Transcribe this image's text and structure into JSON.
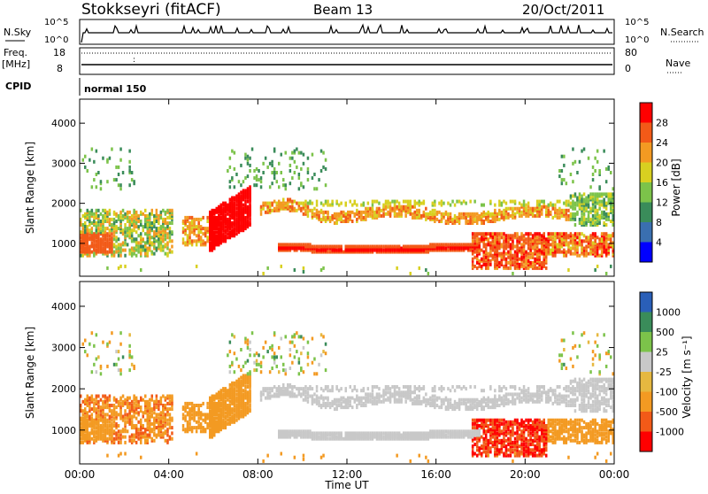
{
  "header": {
    "station": "Stokkseyri (fitACF)",
    "beam": "Beam 13",
    "date": "20/Oct/2011"
  },
  "noise_panel": {
    "left_label": "N.Sky",
    "right_label": "N.Search",
    "tick_top": "10^5",
    "tick_bottom": "10^0"
  },
  "freq_panel": {
    "left_label_1": "Freq.",
    "left_label_2": "[MHz]",
    "right_label": "Nave",
    "left_ticks": [
      "18",
      "8"
    ],
    "right_ticks": [
      "80",
      "0"
    ]
  },
  "cpid": {
    "label": "CPID",
    "value": "normal 150"
  },
  "x_axis": {
    "label": "Time UT",
    "ticks": [
      "00:00",
      "04:00",
      "08:00",
      "12:00",
      "16:00",
      "20:00",
      "00:00"
    ]
  },
  "colors": {
    "power_scale": [
      "#0000ff",
      "#3a6fb0",
      "#3a8c5a",
      "#7cc34a",
      "#d8d020",
      "#f39a22",
      "#f25a18",
      "#ff0000"
    ],
    "velocity_scale": [
      "#ff0000",
      "#f25a18",
      "#f39a22",
      "#e6b840",
      "#c8c8c8",
      "#7cc34a",
      "#3a8c5a",
      "#2a5fb8"
    ],
    "ground_scatter": "#c8c8c8"
  },
  "chart_data": [
    {
      "type": "heatmap",
      "panel": "power",
      "ylabel": "Slant Range [km]",
      "xlabel": "Time UT",
      "x_ticks": [
        "00:00",
        "04:00",
        "08:00",
        "12:00",
        "16:00",
        "20:00",
        "00:00"
      ],
      "xlim_hours": [
        0,
        24
      ],
      "y_ticks": [
        1000,
        2000,
        3000,
        4000
      ],
      "ylim": [
        180,
        4600
      ],
      "colorbar": {
        "label": "Power [dB]",
        "ticks": [
          4,
          8,
          12,
          16,
          20,
          24,
          28
        ],
        "range": [
          0,
          32
        ]
      },
      "features": [
        {
          "feature": "main scatter band",
          "t_start": 9.5,
          "t_end": 17.8,
          "range_km": [
            850,
            1050
          ],
          "power_db": 30
        },
        {
          "feature": "upper band",
          "t_start": 8.5,
          "t_end": 22.0,
          "range_km": [
            1500,
            2100
          ],
          "power_db": 22
        },
        {
          "feature": "early morning echoes",
          "t_start": 0.0,
          "t_end": 4.0,
          "range_km": [
            800,
            1800
          ],
          "power_db": 16
        },
        {
          "feature": "strong 06-08 UT patch",
          "t_start": 5.7,
          "t_end": 7.4,
          "range_km": [
            700,
            1900
          ],
          "power_db": 30
        },
        {
          "feature": "evening echoes",
          "t_start": 18.0,
          "t_end": 24.0,
          "range_km": [
            400,
            1500
          ],
          "power_db": 28
        }
      ]
    },
    {
      "type": "heatmap",
      "panel": "velocity",
      "ylabel": "Slant Range [km]",
      "xlabel": "Time UT",
      "x_ticks": [
        "00:00",
        "04:00",
        "08:00",
        "12:00",
        "16:00",
        "20:00",
        "00:00"
      ],
      "xlim_hours": [
        0,
        24
      ],
      "y_ticks": [
        1000,
        2000,
        3000,
        4000
      ],
      "ylim": [
        180,
        4600
      ],
      "colorbar": {
        "label": "Velocity [m s⁻¹]",
        "ticks": [
          1000,
          500,
          25,
          -25,
          -100,
          -500,
          -1000
        ]
      },
      "features": [
        {
          "feature": "ground scatter band",
          "t_start": 8.0,
          "t_end": 23.5,
          "range_km": [
            800,
            2300
          ],
          "velocity": 0
        },
        {
          "feature": "early morning flows",
          "t_start": 0.0,
          "t_end": 4.5,
          "range_km": [
            800,
            1900
          ],
          "velocity": -150
        },
        {
          "feature": "evening flows",
          "t_start": 18.0,
          "t_end": 21.0,
          "range_km": [
            400,
            1400
          ],
          "velocity": -600
        }
      ]
    }
  ]
}
